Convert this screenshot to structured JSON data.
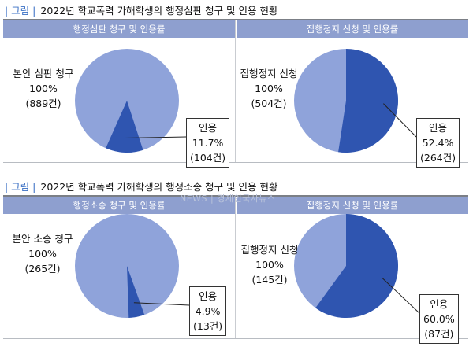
{
  "figure1": {
    "tag": "| 그림 |",
    "title": "2022년 학교폭력 가해학생의 행정심판 청구 및 인용 현황"
  },
  "figure2": {
    "tag": "| 그림 |",
    "title": "2022년 학교폭력 가해학생의 행정소송 청구 및 인용 현황"
  },
  "watermark": "NEWS | 경제인국사뉴스",
  "colors": {
    "header": "#8e9fcf",
    "base": "#8fa3da",
    "accepted": "#2f55b0"
  },
  "chart_data": [
    {
      "type": "pie",
      "title": "행정심판 청구 및 인용률",
      "slices": [
        {
          "label": "본안 심판 청구",
          "lines": [
            "본안 심판 청구",
            "100%",
            "(889건)"
          ],
          "count": 889
        },
        {
          "label": "인용",
          "lines": [
            "인용",
            "11.7%",
            "(104건)"
          ],
          "percent": 11.7,
          "count": 104
        }
      ]
    },
    {
      "type": "pie",
      "title": "집행정지 신청 및 인용률",
      "slices": [
        {
          "label": "집행정지 신청",
          "lines": [
            "집행정지 신청",
            "100%",
            "(504건)"
          ],
          "count": 504
        },
        {
          "label": "인용",
          "lines": [
            "인용",
            "52.4%",
            "(264건)"
          ],
          "percent": 52.4,
          "count": 264
        }
      ]
    },
    {
      "type": "pie",
      "title": "행정소송 청구 및 인용률",
      "slices": [
        {
          "label": "본안 소송 청구",
          "lines": [
            "본안 소송 청구",
            "100%",
            "(265건)"
          ],
          "count": 265
        },
        {
          "label": "인용",
          "lines": [
            "인용",
            "4.9%",
            "(13건)"
          ],
          "percent": 4.9,
          "count": 13
        }
      ]
    },
    {
      "type": "pie",
      "title": "집행정지 신청 및 인용률",
      "slices": [
        {
          "label": "집행정지 신청",
          "lines": [
            "집행정지 신청",
            "100%",
            "(145건)"
          ],
          "count": 145
        },
        {
          "label": "인용",
          "lines": [
            "인용",
            "60.0%",
            "(87건)"
          ],
          "percent": 60.0,
          "count": 87
        }
      ]
    }
  ]
}
